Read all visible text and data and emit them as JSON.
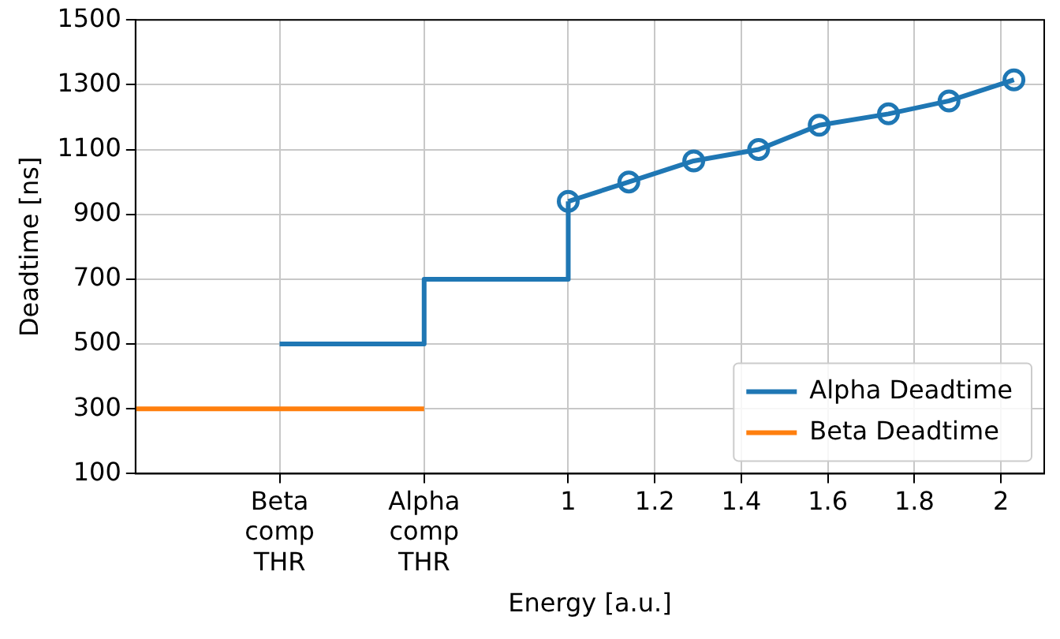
{
  "chart_data": {
    "type": "line",
    "xlabel": "Energy [a.u.]",
    "ylabel": "Deadtime [ns]",
    "xlim": [
      0,
      2.1
    ],
    "xticks": [
      {
        "value": 0.333,
        "label": "Beta\ncomp\nTHR"
      },
      {
        "value": 0.667,
        "label": "Alpha\ncomp\nTHR"
      },
      1,
      {
        "value": 1.2,
        "label": "1.2"
      },
      {
        "value": 1.4,
        "label": "1.4"
      },
      {
        "value": 1.6,
        "label": "1.6"
      },
      {
        "value": 1.8,
        "label": "1.8"
      },
      2
    ],
    "ylim": [
      100,
      1500
    ],
    "yticks": [
      100,
      300,
      500,
      700,
      900,
      1100,
      1300,
      1500
    ],
    "grid": true,
    "legend": "bottom right",
    "series": [
      {
        "name": "Alpha Deadtime",
        "type": "step",
        "color": "#1f77b4",
        "marker": "none",
        "x": [
          0.333,
          0.667,
          1
        ],
        "values": [
          500,
          700,
          940
        ]
      },
      {
        "type": "line",
        "color": "#1f77b4",
        "marker": "circle",
        "x": [
          1,
          1.14,
          1.29,
          1.44,
          1.58,
          1.74,
          1.88,
          2.03
        ],
        "values": [
          940,
          1000,
          1065,
          1100,
          1175,
          1210,
          1250,
          1315
        ]
      },
      {
        "name": "Beta Deadtime",
        "type": "line",
        "color": "#ff7f0e",
        "marker": "none",
        "x": [
          0,
          0.667
        ],
        "values": [
          300,
          300
        ]
      }
    ]
  }
}
